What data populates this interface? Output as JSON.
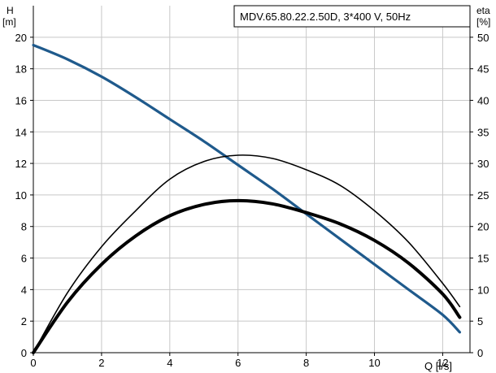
{
  "chart_data": {
    "type": "line",
    "title": "MDV.65.80.22.2.50D, 3*400 V, 50Hz",
    "x_axis": {
      "label": "Q [l/s]",
      "range": [
        0,
        12.8
      ],
      "ticks": [
        "0",
        "2",
        "4",
        "6",
        "8",
        "10",
        "12"
      ],
      "tick_values": [
        0,
        2,
        4,
        6,
        8,
        10,
        12
      ]
    },
    "y_left": {
      "label_line1": "H",
      "label_line2": "[m]",
      "range": [
        0,
        22
      ],
      "ticks": [
        "0",
        "2",
        "4",
        "6",
        "8",
        "10",
        "12",
        "14",
        "16",
        "18",
        "20"
      ],
      "tick_values": [
        0,
        2,
        4,
        6,
        8,
        10,
        12,
        14,
        16,
        18,
        20
      ]
    },
    "y_right": {
      "label_line1": "eta",
      "label_line2": "[%]",
      "range": [
        0,
        55
      ],
      "ticks": [
        "0",
        "5",
        "10",
        "15",
        "20",
        "25",
        "30",
        "35",
        "40",
        "45",
        "50"
      ],
      "tick_values": [
        0,
        5,
        10,
        15,
        20,
        25,
        30,
        35,
        40,
        45,
        50
      ]
    },
    "grid": true,
    "series": [
      {
        "axis": "left",
        "color": "#1f5a8c",
        "x": [
          0,
          1,
          2,
          3,
          4,
          5,
          6,
          7,
          8,
          9,
          10,
          11,
          12,
          12.5
        ],
        "y": [
          19.5,
          18.6,
          17.5,
          16.2,
          14.8,
          13.4,
          11.9,
          10.4,
          8.8,
          7.2,
          5.6,
          4.0,
          2.4,
          1.3
        ]
      },
      {
        "axis": "right",
        "color": "#000000",
        "stroke": "thick",
        "x": [
          0,
          1,
          2,
          3,
          4,
          5,
          6,
          7,
          8,
          9,
          10,
          11,
          12,
          12.5
        ],
        "y": [
          0,
          8,
          14,
          18.5,
          21.7,
          23.5,
          24.1,
          23.6,
          22.2,
          20.4,
          17.8,
          14.2,
          9.3,
          5.6
        ]
      },
      {
        "axis": "right",
        "color": "#000000",
        "stroke": "thin",
        "x": [
          0,
          1,
          2,
          3,
          4,
          5,
          6,
          7,
          8,
          9,
          10,
          11,
          12,
          12.5
        ],
        "y": [
          0,
          9.5,
          16.8,
          22.5,
          27.5,
          30.3,
          31.3,
          30.8,
          29.0,
          26.5,
          22.5,
          17.5,
          11.0,
          7.3
        ]
      }
    ]
  }
}
